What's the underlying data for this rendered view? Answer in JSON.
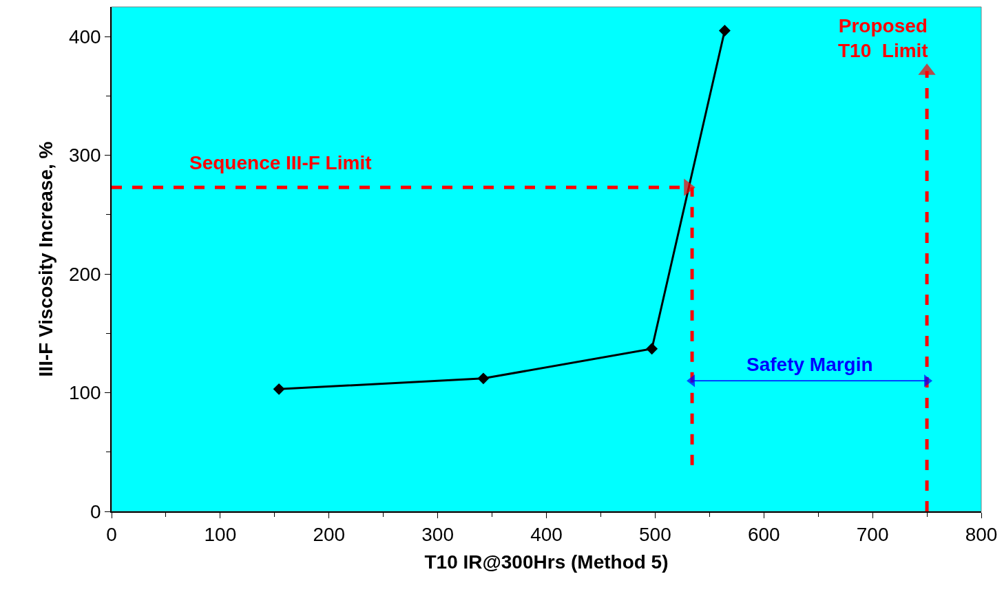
{
  "chart_data": {
    "type": "line",
    "xlabel": "T10 IR@300Hrs (Method 5)",
    "ylabel": "III-F Viscosity Increase, %",
    "xlim": [
      0,
      800
    ],
    "xticks": [
      0,
      100,
      200,
      300,
      400,
      500,
      600,
      700,
      800
    ],
    "ylim": [
      0,
      425
    ],
    "yticks": [
      0,
      100,
      200,
      300,
      400
    ],
    "grid": false,
    "series": [
      {
        "color": "#000000",
        "marker": "diamond",
        "line_style": "solid",
        "x": [
          154,
          342,
          497,
          564
        ],
        "values": [
          103,
          112,
          137,
          405
        ]
      },
      {
        "color": "#ff0000",
        "marker": "triangle",
        "line_style": "dashed",
        "x": [
          0,
          530
        ],
        "values": [
          273,
          273
        ]
      },
      {
        "color": "#ff0000",
        "marker": "none",
        "line_style": "dashed",
        "x": [
          534,
          534
        ],
        "values": [
          39,
          273
        ]
      },
      {
        "color": "#ff0000",
        "marker": "triangle",
        "line_style": "dashed",
        "x": [
          750,
          750
        ],
        "values": [
          0,
          371
        ]
      },
      {
        "color": "#0000ff",
        "marker": "triangle",
        "line_style": "solid",
        "x": [
          534,
          750
        ],
        "values": [
          110,
          110
        ]
      }
    ],
    "annotations": [
      "Sequence III-F Limit",
      "Proposed\nT10  Limit",
      "Safety Margin"
    ]
  }
}
